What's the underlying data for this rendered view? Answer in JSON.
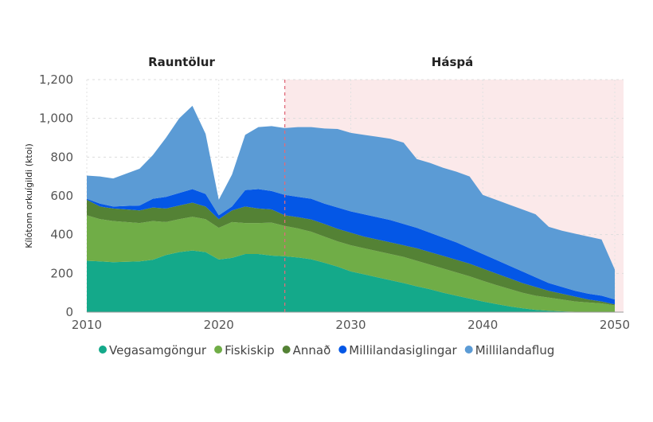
{
  "chart_data": {
    "type": "area",
    "stacked": true,
    "title": "",
    "xlabel": "",
    "ylabel": "Kílótonn orkuígildi (ktoi)",
    "xlim": [
      2010,
      2050
    ],
    "ylim": [
      0,
      1200
    ],
    "x_ticks": [
      "2010",
      "2020",
      "2030",
      "2040",
      "2050"
    ],
    "y_ticks": [
      "0",
      "200",
      "400",
      "600",
      "800",
      "1,000",
      "1,200"
    ],
    "grid": true,
    "legend_position": "bottom",
    "annotations": [
      {
        "label": "Rauntölur",
        "range": [
          2010,
          2025
        ]
      },
      {
        "label": "Háspá",
        "range": [
          2025,
          2050
        ],
        "shaded": true,
        "shade_color": "#fbe9ea",
        "divider_color": "#e06b7a"
      }
    ],
    "x": [
      2010,
      2011,
      2012,
      2013,
      2014,
      2015,
      2016,
      2017,
      2018,
      2019,
      2020,
      2021,
      2022,
      2023,
      2024,
      2025,
      2026,
      2027,
      2028,
      2029,
      2030,
      2031,
      2032,
      2033,
      2034,
      2035,
      2036,
      2037,
      2038,
      2039,
      2040,
      2041,
      2042,
      2043,
      2044,
      2045,
      2046,
      2047,
      2048,
      2049,
      2050
    ],
    "series": [
      {
        "name": "Vegasamgöngur",
        "color": "#14a98a",
        "values": [
          265,
          262,
          258,
          260,
          262,
          270,
          295,
          310,
          318,
          310,
          272,
          280,
          300,
          300,
          292,
          288,
          282,
          273,
          255,
          235,
          210,
          195,
          180,
          165,
          150,
          133,
          118,
          100,
          85,
          70,
          55,
          42,
          30,
          20,
          12,
          7,
          4,
          2,
          1,
          0,
          0
        ]
      },
      {
        "name": "Fiskiskip",
        "color": "#70ad47",
        "values": [
          235,
          218,
          212,
          205,
          198,
          200,
          170,
          170,
          174,
          170,
          163,
          185,
          160,
          160,
          170,
          157,
          150,
          142,
          135,
          130,
          135,
          135,
          135,
          135,
          135,
          132,
          127,
          125,
          120,
          115,
          107,
          98,
          90,
          80,
          73,
          68,
          61,
          53,
          49,
          45,
          35
        ]
      },
      {
        "name": "Annað",
        "color": "#548235",
        "values": [
          80,
          65,
          65,
          65,
          65,
          70,
          70,
          70,
          73,
          65,
          45,
          60,
          85,
          75,
          68,
          55,
          58,
          63,
          65,
          65,
          65,
          60,
          60,
          60,
          60,
          65,
          65,
          65,
          65,
          65,
          63,
          60,
          55,
          50,
          45,
          35,
          30,
          25,
          15,
          10,
          5
        ]
      },
      {
        "name": "Millilandasiglingar",
        "color": "#0457e6",
        "values": [
          5,
          15,
          10,
          18,
          25,
          45,
          60,
          65,
          70,
          65,
          20,
          20,
          85,
          100,
          95,
          105,
          105,
          107,
          105,
          110,
          110,
          115,
          115,
          115,
          110,
          105,
          100,
          95,
          90,
          80,
          75,
          70,
          65,
          60,
          50,
          40,
          35,
          30,
          30,
          30,
          25
        ]
      },
      {
        "name": "Millilandaflug",
        "color": "#5b9bd5",
        "values": [
          120,
          140,
          145,
          167,
          190,
          225,
          305,
          385,
          430,
          310,
          80,
          165,
          285,
          320,
          335,
          345,
          360,
          370,
          388,
          405,
          405,
          410,
          415,
          420,
          420,
          355,
          360,
          360,
          365,
          370,
          305,
          310,
          315,
          320,
          325,
          290,
          290,
          295,
          295,
          290,
          155
        ]
      }
    ]
  }
}
